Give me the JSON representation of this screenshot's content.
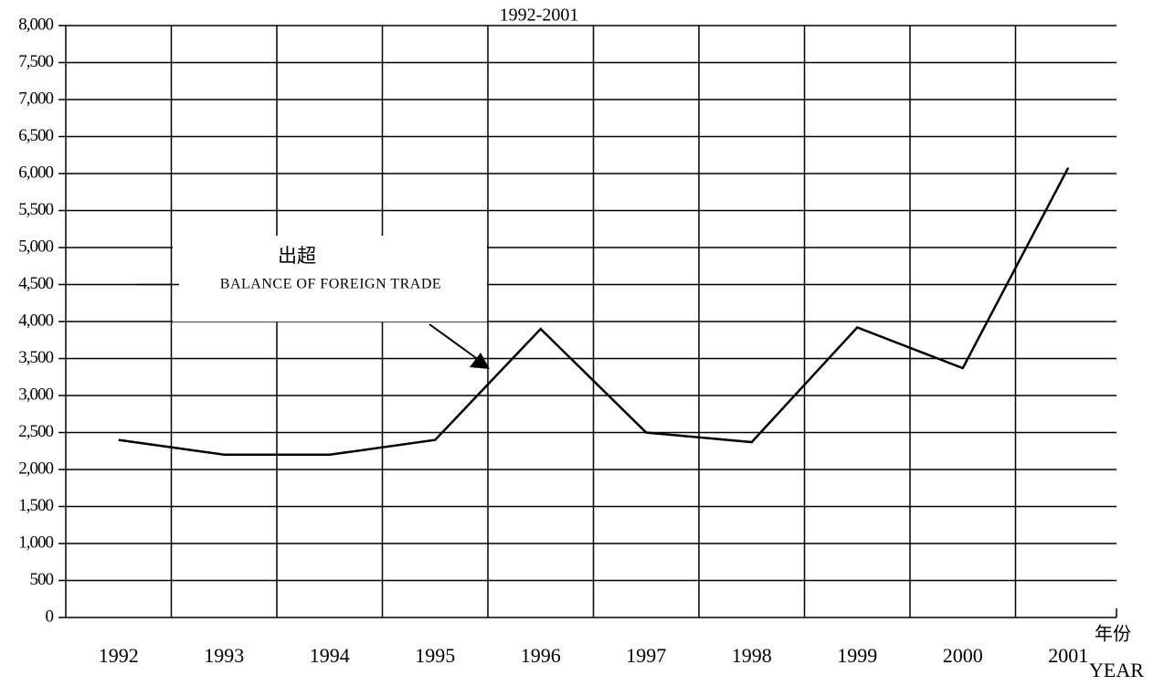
{
  "chart_data": {
    "type": "line",
    "title": "1992-2001",
    "categories": [
      "1992",
      "1993",
      "1994",
      "1995",
      "1996",
      "1997",
      "1998",
      "1999",
      "2000",
      "2001"
    ],
    "series": [
      {
        "name": "BALANCE OF FOREIGN TRADE",
        "color": "#000000",
        "values": [
          2400,
          2200,
          2200,
          2400,
          3900,
          2500,
          2370,
          3920,
          3370,
          6080
        ]
      }
    ],
    "annotation": {
      "title": "出超",
      "text": "BALANCE OF FOREIGN TRADE"
    },
    "xlabel": {
      "zh": "年份",
      "en": "YEAR"
    },
    "ylim": [
      0,
      8000
    ],
    "yticks": [
      0,
      500,
      {
        "value": 1000,
        "label": "1,000"
      },
      {
        "value": 1500,
        "label": "1,500"
      },
      {
        "value": 2000,
        "label": "2,000"
      },
      {
        "value": 2500,
        "label": "2,500"
      },
      {
        "value": 3000,
        "label": "3,000"
      },
      {
        "value": 3500,
        "label": "3,500"
      },
      {
        "value": 4000,
        "label": "4,000"
      },
      {
        "value": 4500,
        "label": "4,500"
      },
      {
        "value": 5000,
        "label": "5,000"
      },
      {
        "value": 5500,
        "label": "5,500"
      },
      {
        "value": 6000,
        "label": "6,000"
      },
      {
        "value": 6500,
        "label": "6,500"
      },
      {
        "value": 7000,
        "label": "7,000"
      },
      {
        "value": 7500,
        "label": "7,500"
      },
      {
        "value": 8000,
        "label": "8,000"
      }
    ],
    "grid": true
  }
}
